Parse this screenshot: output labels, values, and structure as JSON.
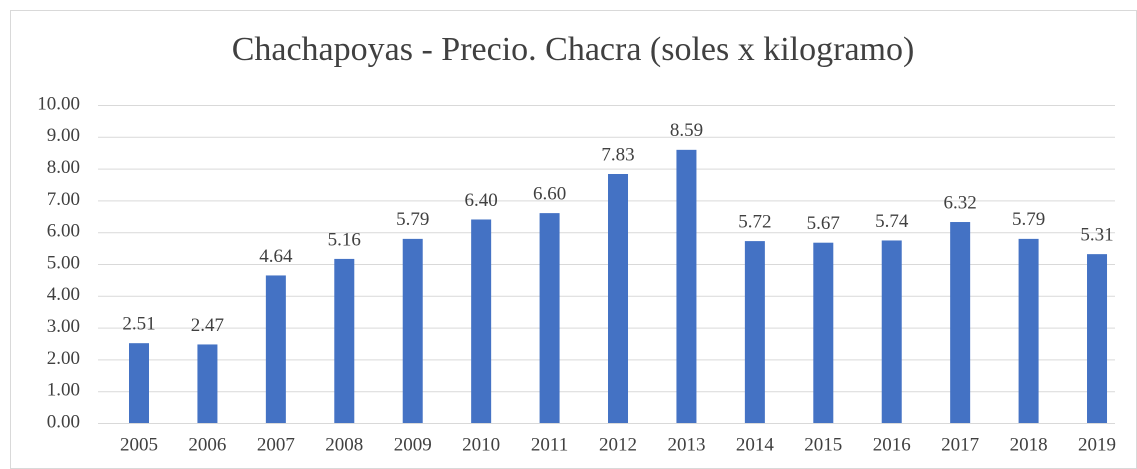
{
  "chart_data": {
    "type": "bar",
    "title": "Chachapoyas - Precio. Chacra (soles x kilogramo)",
    "categories": [
      "2005",
      "2006",
      "2007",
      "2008",
      "2009",
      "2010",
      "2011",
      "2012",
      "2013",
      "2014",
      "2015",
      "2016",
      "2017",
      "2018",
      "2019"
    ],
    "values": [
      2.51,
      2.47,
      4.64,
      5.16,
      5.79,
      6.4,
      6.6,
      7.83,
      8.59,
      5.72,
      5.67,
      5.74,
      6.32,
      5.79,
      5.31
    ],
    "value_labels": [
      "2.51",
      "2.47",
      "4.64",
      "5.16",
      "5.79",
      "6.40",
      "6.60",
      "7.83",
      "8.59",
      "5.72",
      "5.67",
      "5.74",
      "6.32",
      "5.79",
      "5.31"
    ],
    "color": "#4472c4",
    "ylim": [
      0,
      10
    ],
    "yticks": [
      {
        "value": 0,
        "label": "0.00"
      },
      {
        "value": 1,
        "label": "1.00"
      },
      {
        "value": 2,
        "label": "2.00"
      },
      {
        "value": 3,
        "label": "3.00"
      },
      {
        "value": 4,
        "label": "4.00"
      },
      {
        "value": 5,
        "label": "5.00"
      },
      {
        "value": 6,
        "label": "6.00"
      },
      {
        "value": 7,
        "label": "7.00"
      },
      {
        "value": 8,
        "label": "8.00"
      },
      {
        "value": 9,
        "label": "9.00"
      },
      {
        "value": 10,
        "label": "10.00"
      }
    ],
    "grid": true
  }
}
